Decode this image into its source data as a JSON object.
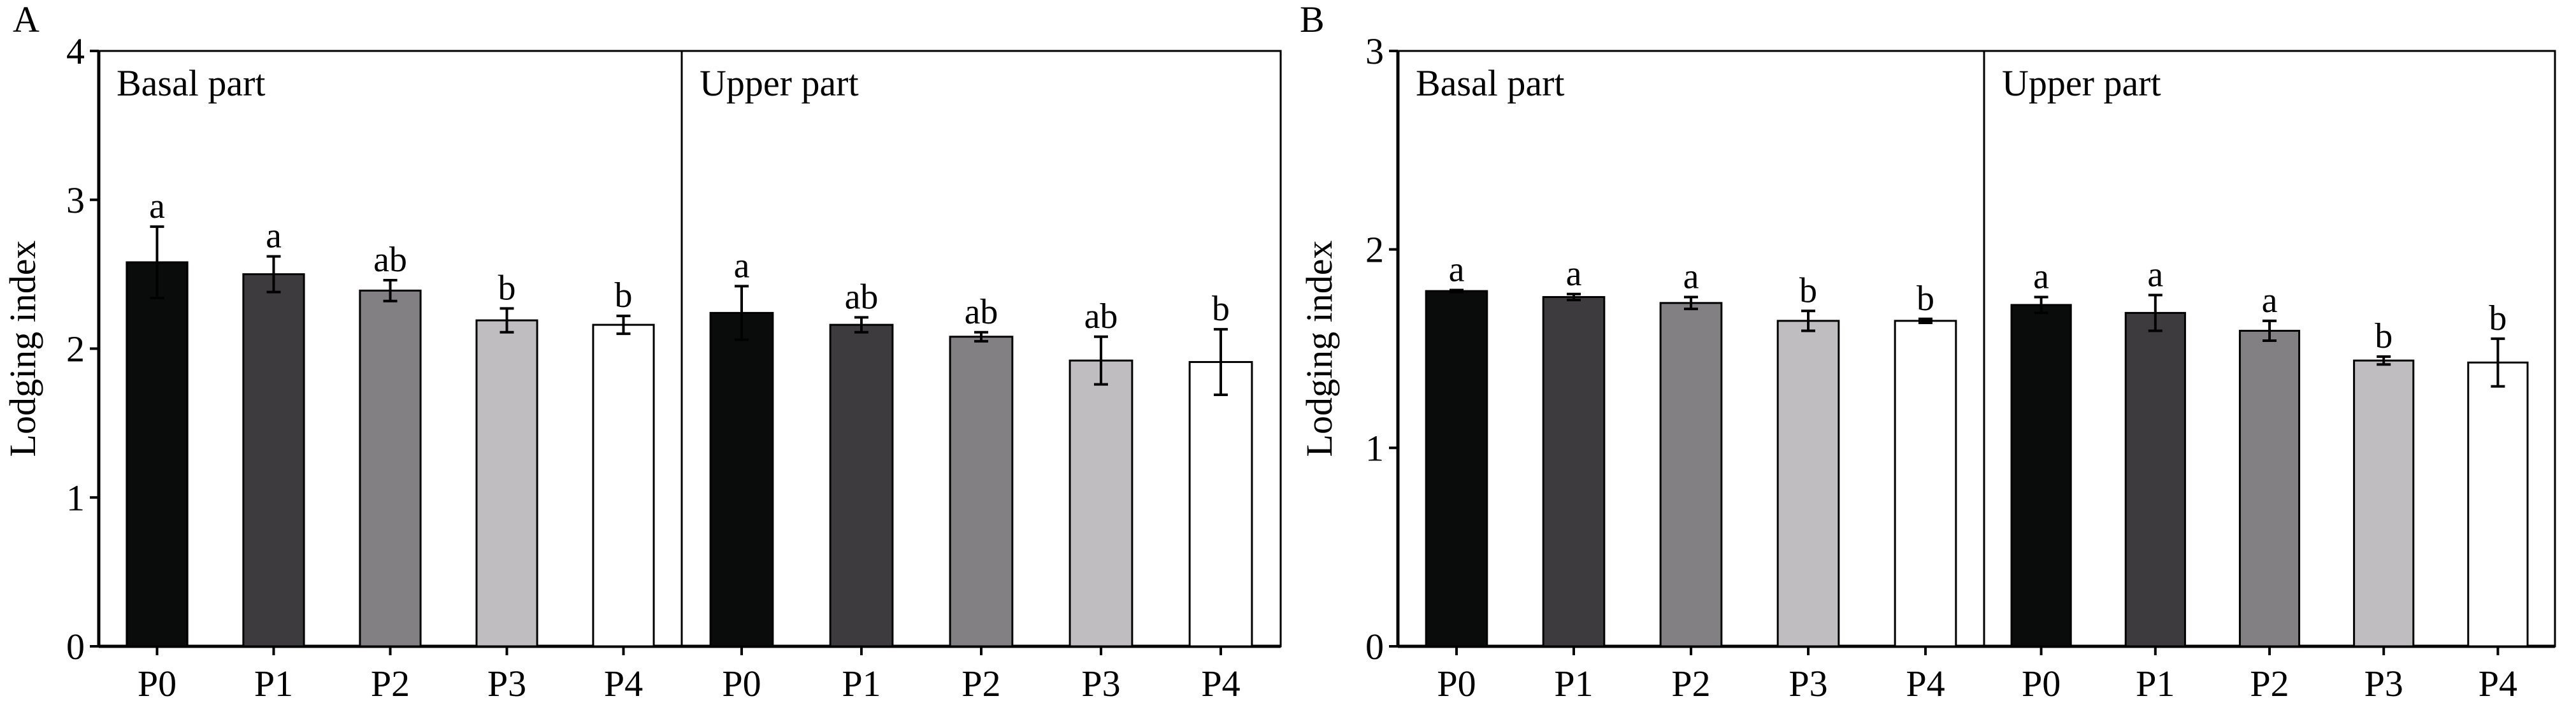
{
  "chart_data": [
    {
      "type": "bar",
      "panel_label": "A",
      "ylabel": "Lodging index",
      "xlabel": "",
      "ylim": [
        0,
        4
      ],
      "yticks": [
        "0",
        "1",
        "2",
        "3",
        "4"
      ],
      "grid": false,
      "groups": [
        {
          "name": "Basal part",
          "categories": [
            "P0",
            "P1",
            "P2",
            "P3",
            "P4"
          ],
          "values": [
            2.58,
            2.5,
            2.39,
            2.19,
            2.16
          ],
          "errors": [
            0.24,
            0.12,
            0.07,
            0.08,
            0.06
          ],
          "letters": [
            "a",
            "a",
            "ab",
            "b",
            "b"
          ]
        },
        {
          "name": "Upper part",
          "categories": [
            "P0",
            "P1",
            "P2",
            "P3",
            "P4"
          ],
          "values": [
            2.24,
            2.16,
            2.08,
            1.92,
            1.91
          ],
          "errors": [
            0.18,
            0.05,
            0.03,
            0.16,
            0.22
          ],
          "letters": [
            "a",
            "ab",
            "ab",
            "ab",
            "b"
          ]
        }
      ],
      "bar_colors": [
        "#0a0c0c",
        "#3d3b3e",
        "#828083",
        "#bfbdc0",
        "#ffffff"
      ]
    },
    {
      "type": "bar",
      "panel_label": "B",
      "ylabel": "Lodging index",
      "xlabel": "",
      "ylim": [
        0,
        3
      ],
      "yticks": [
        "0",
        "1",
        "2",
        "3"
      ],
      "grid": false,
      "groups": [
        {
          "name": "Basal part",
          "categories": [
            "P0",
            "P1",
            "P2",
            "P3",
            "P4"
          ],
          "values": [
            1.79,
            1.76,
            1.73,
            1.64,
            1.64
          ],
          "errors": [
            0.005,
            0.015,
            0.03,
            0.05,
            0.01
          ],
          "letters": [
            "a",
            "a",
            "a",
            "b",
            "b"
          ]
        },
        {
          "name": "Upper part",
          "categories": [
            "P0",
            "P1",
            "P2",
            "P3",
            "P4"
          ],
          "values": [
            1.72,
            1.68,
            1.59,
            1.44,
            1.43
          ],
          "errors": [
            0.04,
            0.09,
            0.05,
            0.02,
            0.12
          ],
          "letters": [
            "a",
            "a",
            "a",
            "b",
            "b"
          ]
        }
      ],
      "bar_colors": [
        "#0a0c0c",
        "#3d3b3e",
        "#828083",
        "#bfbdc0",
        "#ffffff"
      ]
    }
  ]
}
